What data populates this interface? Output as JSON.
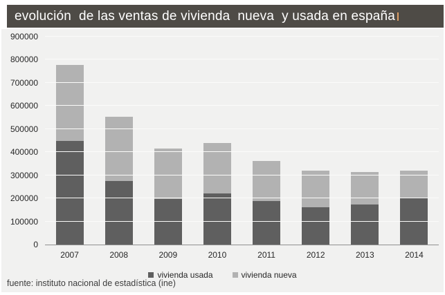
{
  "title": "evolución  de las ventas de vivienda  nueva  y usada en españa",
  "source_note": "fuente: instituto nacional de estadística (ine)",
  "colors": {
    "titlebar_bg": "#4e4b46",
    "titlebar_text": "#ffffff",
    "panel_bg": "#f1f1f0",
    "gridline": "#fbfbfa",
    "axis_line": "#8f8f8f",
    "tick_text": "#262626",
    "cursor_mark": "#dd9f66",
    "bar_usada": "#5f5f5f",
    "bar_nueva": "#b2b2b2"
  },
  "chart_data": {
    "type": "bar",
    "stacked": true,
    "title": "evolución de las ventas de vivienda nueva y usada en españa",
    "categories": [
      "2007",
      "2008",
      "2009",
      "2010",
      "2011",
      "2012",
      "2013",
      "2014"
    ],
    "series": [
      {
        "name": "vivienda usada",
        "color": "#5f5f5f",
        "values": [
          448000,
          275000,
          197000,
          221000,
          187000,
          163000,
          172000,
          201000
        ]
      },
      {
        "name": "vivienda nueva",
        "color": "#b2b2b2",
        "values": [
          330000,
          278000,
          218000,
          219000,
          175000,
          156000,
          141000,
          119000
        ]
      }
    ],
    "totals": [
      778000,
      553000,
      415000,
      440000,
      362000,
      319000,
      313000,
      320000
    ],
    "xlabel": "",
    "ylabel": "",
    "ylim": [
      0,
      900000
    ],
    "ytick_step": 100000,
    "yticks": [
      "0",
      "100000",
      "200000",
      "300000",
      "400000",
      "500000",
      "600000",
      "700000",
      "800000",
      "900000"
    ],
    "grid": true,
    "legend_position": "bottom-center"
  }
}
